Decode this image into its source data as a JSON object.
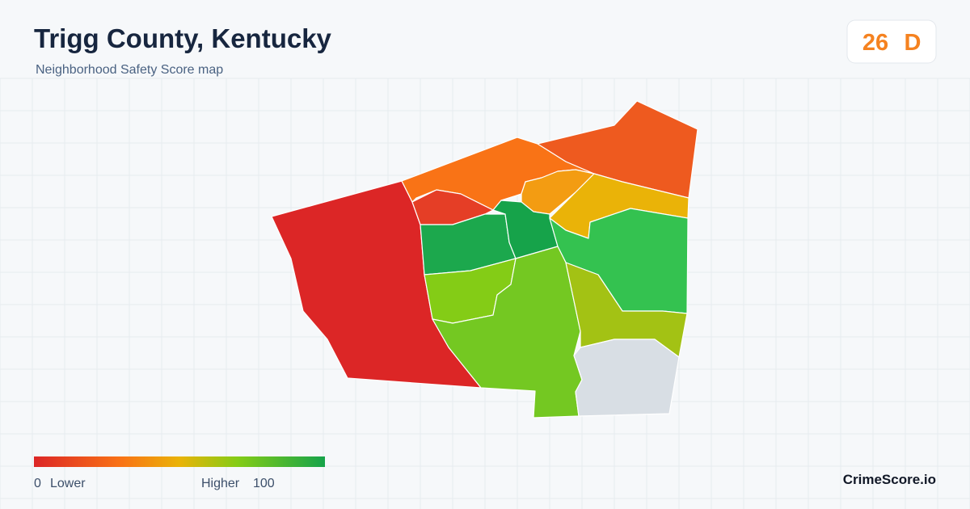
{
  "header": {
    "title": "Trigg County, Kentucky",
    "subtitle": "Neighborhood Safety Score map"
  },
  "score": {
    "value": 26,
    "grade": "D"
  },
  "legend": {
    "min": 0,
    "min_label": "Lower",
    "max_label": "Higher",
    "max": 100
  },
  "brand": "CrimeScore.io"
}
